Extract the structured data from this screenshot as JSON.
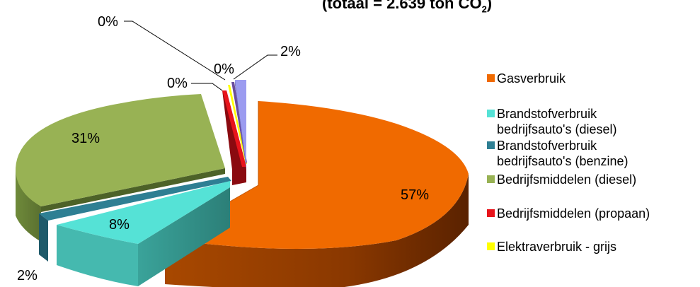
{
  "chart_data": {
    "type": "pie",
    "title_main": "(totaal = 2.639 ton CO",
    "title_sub": "2",
    "title_end": ")",
    "slices": [
      {
        "label": "Gasverbruik",
        "value": 57,
        "value_label": "57%",
        "color": "#F06A00"
      },
      {
        "label": "Brandstofverbruik bedrijfsauto's (diesel)",
        "label_lines": [
          "Brandstofverbruik",
          "bedrijfsauto's (diesel)"
        ],
        "value": 8,
        "value_label": "8%",
        "color": "#55E2D6"
      },
      {
        "label": "Brandstofverbruik bedrijfsauto's (benzine)",
        "label_lines": [
          "Brandstofverbruik",
          "bedrijfsauto's (benzine)"
        ],
        "value": 2,
        "value_label": "2%",
        "color": "#2E7F93"
      },
      {
        "label": "Bedrijfsmiddelen (diesel)",
        "value": 31,
        "value_label": "31%",
        "color": "#98B254"
      },
      {
        "label": "Bedrijfsmiddelen (propaan)",
        "value": 0,
        "value_label": "0%",
        "color": "#E8141B"
      },
      {
        "label": "Elektraverbruik - grijs",
        "value": 0,
        "value_label": "0%",
        "color": "#FFFF00"
      },
      {
        "label": "",
        "value": 0,
        "value_label": "0%",
        "color": "#6A4C9C"
      },
      {
        "label": "",
        "value": 2,
        "value_label": "2%",
        "color": "#9B9BF0"
      }
    ],
    "legend_position": "right"
  }
}
